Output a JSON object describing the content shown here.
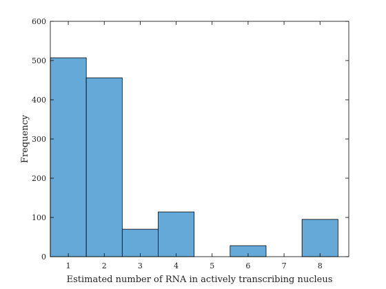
{
  "chart_data": {
    "type": "bar",
    "title": "",
    "xlabel": "Estimated number of RNA in actively transcribing nucleus",
    "ylabel": "Frequency",
    "categories": [
      "1",
      "2",
      "3",
      "4",
      "5",
      "6",
      "7",
      "8"
    ],
    "values": [
      507,
      456,
      70,
      114,
      0,
      28,
      0,
      95
    ],
    "xlim": [
      0.5,
      8.8
    ],
    "ylim": [
      0,
      600
    ],
    "yticks": [
      0,
      100,
      200,
      300,
      400,
      500,
      600
    ],
    "xticks": [
      1,
      2,
      3,
      4,
      5,
      6,
      7,
      8
    ],
    "bar_width": 1,
    "grid": false,
    "legend": "none",
    "colors": {
      "bar_fill": "#65a9d8",
      "bar_stroke": "#000000",
      "axis": "#000000"
    }
  }
}
